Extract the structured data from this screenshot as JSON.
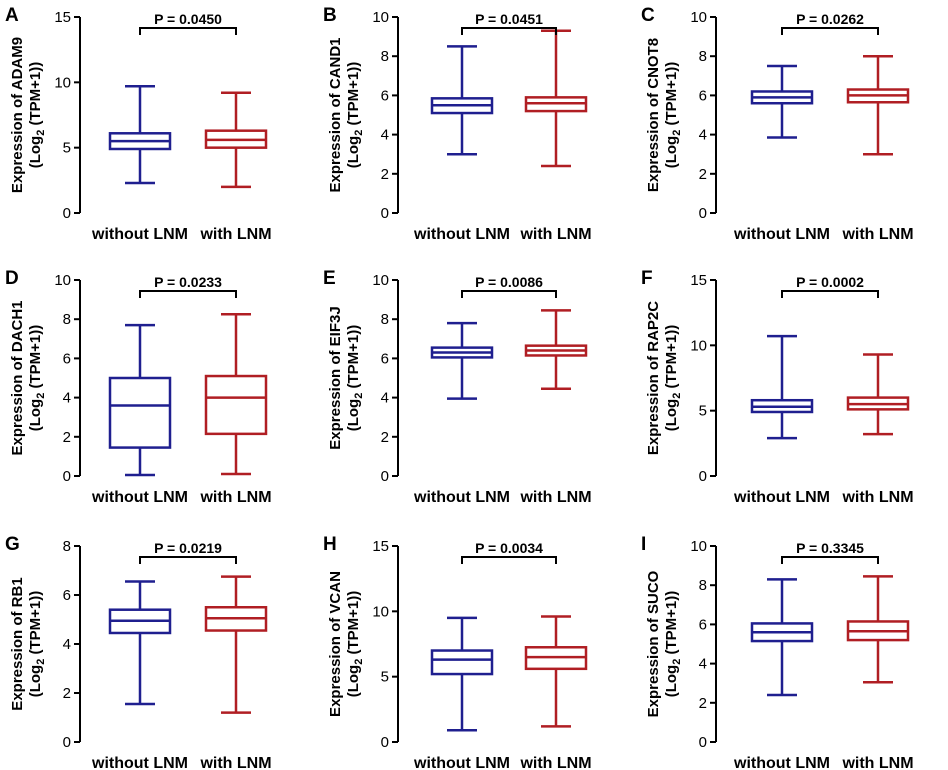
{
  "chart_data": [
    {
      "type": "box",
      "panel": "A",
      "ylabel": "Expression of ADAM9",
      "ylabel_unit_base": "(Log",
      "ylabel_unit_sub": "2",
      "ylabel_unit_rest": " (TPM+1))",
      "ylim": [
        0,
        15
      ],
      "yticks": [
        "0",
        "5",
        "10",
        "15"
      ],
      "pvalue": "P = 0.0450",
      "categories": [
        "without LNM",
        "with LNM"
      ],
      "series": [
        {
          "name": "without LNM",
          "color": "#1f1f8f",
          "min": 2.3,
          "q1": 4.9,
          "median": 5.5,
          "q3": 6.1,
          "max": 9.7
        },
        {
          "name": "with LNM",
          "color": "#b01e23",
          "min": 2.0,
          "q1": 5.0,
          "median": 5.6,
          "q3": 6.3,
          "max": 9.2
        }
      ]
    },
    {
      "type": "box",
      "panel": "B",
      "ylabel": "Expression of CAND1",
      "ylabel_unit_base": "(Log",
      "ylabel_unit_sub": "2",
      "ylabel_unit_rest": " (TPM+1))",
      "ylim": [
        0,
        10
      ],
      "yticks": [
        "0",
        "2",
        "4",
        "6",
        "8",
        "10"
      ],
      "pvalue": "P = 0.0451",
      "categories": [
        "without LNM",
        "with LNM"
      ],
      "series": [
        {
          "name": "without LNM",
          "color": "#1f1f8f",
          "min": 3.0,
          "q1": 5.1,
          "median": 5.5,
          "q3": 5.85,
          "max": 8.5
        },
        {
          "name": "with LNM",
          "color": "#b01e23",
          "min": 2.4,
          "q1": 5.2,
          "median": 5.6,
          "q3": 5.9,
          "max": 9.3
        }
      ]
    },
    {
      "type": "box",
      "panel": "C",
      "ylabel": "Expression of CNOT8",
      "ylabel_unit_base": "(Log",
      "ylabel_unit_sub": "2",
      "ylabel_unit_rest": " (TPM+1))",
      "ylim": [
        0,
        10
      ],
      "yticks": [
        "0",
        "2",
        "4",
        "6",
        "8",
        "10"
      ],
      "pvalue": "P = 0.0262",
      "categories": [
        "without LNM",
        "with LNM"
      ],
      "series": [
        {
          "name": "without LNM",
          "color": "#1f1f8f",
          "min": 3.85,
          "q1": 5.6,
          "median": 5.9,
          "q3": 6.2,
          "max": 7.5
        },
        {
          "name": "with LNM",
          "color": "#b01e23",
          "min": 3.0,
          "q1": 5.65,
          "median": 6.0,
          "q3": 6.3,
          "max": 8.0
        }
      ]
    },
    {
      "type": "box",
      "panel": "D",
      "ylabel": "Expression of DACH1",
      "ylabel_unit_base": "(Log",
      "ylabel_unit_sub": "2",
      "ylabel_unit_rest": " (TPM+1))",
      "ylim": [
        0,
        10
      ],
      "yticks": [
        "0",
        "2",
        "4",
        "6",
        "8",
        "10"
      ],
      "pvalue": "P = 0.0233",
      "categories": [
        "without LNM",
        "with LNM"
      ],
      "series": [
        {
          "name": "without LNM",
          "color": "#1f1f8f",
          "min": 0.05,
          "q1": 1.45,
          "median": 3.6,
          "q3": 5.0,
          "max": 7.7
        },
        {
          "name": "with LNM",
          "color": "#b01e23",
          "min": 0.1,
          "q1": 2.15,
          "median": 4.0,
          "q3": 5.1,
          "max": 8.25
        }
      ]
    },
    {
      "type": "box",
      "panel": "E",
      "ylabel": "Expression of EIF3J",
      "ylabel_unit_base": "(Log",
      "ylabel_unit_sub": "2",
      "ylabel_unit_rest": " (TPM+1))",
      "ylim": [
        0,
        10
      ],
      "yticks": [
        "0",
        "2",
        "4",
        "6",
        "8",
        "10"
      ],
      "pvalue": "P = 0.0086",
      "categories": [
        "without LNM",
        "with LNM"
      ],
      "series": [
        {
          "name": "without LNM",
          "color": "#1f1f8f",
          "min": 3.95,
          "q1": 6.05,
          "median": 6.3,
          "q3": 6.55,
          "max": 7.8
        },
        {
          "name": "with LNM",
          "color": "#b01e23",
          "min": 4.45,
          "q1": 6.15,
          "median": 6.4,
          "q3": 6.65,
          "max": 8.45
        }
      ]
    },
    {
      "type": "box",
      "panel": "F",
      "ylabel": "Expression of RAP2C",
      "ylabel_unit_base": "(Log",
      "ylabel_unit_sub": "2",
      "ylabel_unit_rest": " (TPM+1))",
      "ylim": [
        0,
        15
      ],
      "yticks": [
        "0",
        "5",
        "10",
        "15"
      ],
      "pvalue": "P = 0.0002",
      "categories": [
        "without LNM",
        "with LNM"
      ],
      "series": [
        {
          "name": "without LNM",
          "color": "#1f1f8f",
          "min": 2.9,
          "q1": 4.9,
          "median": 5.3,
          "q3": 5.8,
          "max": 10.7
        },
        {
          "name": "with LNM",
          "color": "#b01e23",
          "min": 3.2,
          "q1": 5.1,
          "median": 5.5,
          "q3": 6.0,
          "max": 9.3
        }
      ]
    },
    {
      "type": "box",
      "panel": "G",
      "ylabel": "Expression of RB1",
      "ylabel_unit_base": "(Log",
      "ylabel_unit_sub": "2",
      "ylabel_unit_rest": " (TPM+1))",
      "ylim": [
        0,
        8
      ],
      "yticks": [
        "0",
        "2",
        "4",
        "6",
        "8"
      ],
      "pvalue": "P = 0.0219",
      "categories": [
        "without LNM",
        "with LNM"
      ],
      "series": [
        {
          "name": "without LNM",
          "color": "#1f1f8f",
          "min": 1.55,
          "q1": 4.45,
          "median": 4.95,
          "q3": 5.4,
          "max": 6.55
        },
        {
          "name": "with LNM",
          "color": "#b01e23",
          "min": 1.2,
          "q1": 4.55,
          "median": 5.05,
          "q3": 5.5,
          "max": 6.75
        }
      ]
    },
    {
      "type": "box",
      "panel": "H",
      "ylabel": "Expression of VCAN",
      "ylabel_unit_base": "(Log",
      "ylabel_unit_sub": "2",
      "ylabel_unit_rest": " (TPM+1))",
      "ylim": [
        0,
        15
      ],
      "yticks": [
        "0",
        "5",
        "10",
        "15"
      ],
      "pvalue": "P = 0.0034",
      "categories": [
        "without LNM",
        "with LNM"
      ],
      "series": [
        {
          "name": "without LNM",
          "color": "#1f1f8f",
          "min": 0.9,
          "q1": 5.2,
          "median": 6.3,
          "q3": 7.0,
          "max": 9.5
        },
        {
          "name": "with LNM",
          "color": "#b01e23",
          "min": 1.2,
          "q1": 5.6,
          "median": 6.5,
          "q3": 7.25,
          "max": 9.6
        }
      ]
    },
    {
      "type": "box",
      "panel": "I",
      "ylabel": "Expression of SUCO",
      "ylabel_unit_base": "(Log",
      "ylabel_unit_sub": "2",
      "ylabel_unit_rest": " (TPM+1))",
      "ylim": [
        0,
        10
      ],
      "yticks": [
        "0",
        "2",
        "4",
        "6",
        "8",
        "10"
      ],
      "pvalue": "P = 0.3345",
      "categories": [
        "without LNM",
        "with LNM"
      ],
      "series": [
        {
          "name": "without LNM",
          "color": "#1f1f8f",
          "min": 2.4,
          "q1": 5.15,
          "median": 5.6,
          "q3": 6.05,
          "max": 8.3
        },
        {
          "name": "with LNM",
          "color": "#b01e23",
          "min": 3.05,
          "q1": 5.2,
          "median": 5.65,
          "q3": 6.15,
          "max": 8.45
        }
      ]
    }
  ]
}
